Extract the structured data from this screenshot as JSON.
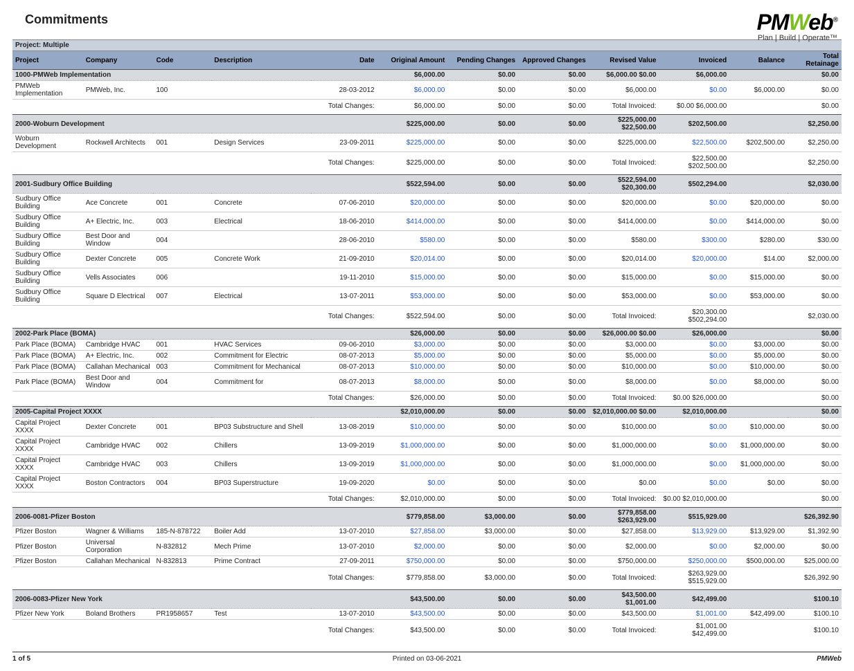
{
  "report_title": "Commitments",
  "logo_tagline": "Plan | Build | Operate™",
  "project_header": "Project:  Multiple",
  "link_color": "#2255cc",
  "header_bg": "#95a8c6",
  "group_bg": "#d7dbe0",
  "proj_head_bg": "#c9d2dc",
  "columns": [
    {
      "key": "project",
      "label": "Project",
      "align": "left"
    },
    {
      "key": "company",
      "label": "Company",
      "align": "left"
    },
    {
      "key": "code",
      "label": "Code",
      "align": "left"
    },
    {
      "key": "description",
      "label": "Description",
      "align": "left"
    },
    {
      "key": "date",
      "label": "Date",
      "align": "right"
    },
    {
      "key": "original",
      "label": "Original Amount",
      "align": "right"
    },
    {
      "key": "pending",
      "label": "Pending Changes",
      "align": "right"
    },
    {
      "key": "approved",
      "label": "Approved Changes",
      "align": "right"
    },
    {
      "key": "revised",
      "label": "Revised Value",
      "align": "right"
    },
    {
      "key": "invoiced",
      "label": "Invoiced",
      "align": "right"
    },
    {
      "key": "balance",
      "label": "Balance",
      "align": "right"
    },
    {
      "key": "retainage",
      "label": "Total Retainage",
      "align": "right"
    }
  ],
  "labels": {
    "total_changes": "Total Changes:",
    "total_invoiced": "Total Invoiced:"
  },
  "groups": [
    {
      "name": "1000-PMWeb Implementation",
      "header_totals": {
        "original": "$6,000.00",
        "pending": "$0.00",
        "approved": "$0.00",
        "revised": "$6,000.00",
        "inv2": "$0.00",
        "invoiced": "$6,000.00",
        "balance": "",
        "retainage": "$0.00"
      },
      "rows": [
        {
          "project": "PMWeb Implementation",
          "company": "PMWeb, Inc.",
          "code": "100",
          "description": "",
          "date": "28-03-2012",
          "original": "$6,000.00",
          "pending": "$0.00",
          "approved": "$0.00",
          "revised": "$6,000.00",
          "invoiced": "$0.00",
          "balance": "$6,000.00",
          "retainage": "$0.00"
        }
      ],
      "totals": {
        "changes_original": "$6,000.00",
        "changes_pending": "$0.00",
        "changes_approved": "$0.00",
        "invoiced": "$0.00",
        "inv_balance": "$6,000.00",
        "retainage": "$0.00"
      }
    },
    {
      "name": "2000-Woburn Development",
      "header_totals": {
        "original": "$225,000.00",
        "pending": "$0.00",
        "approved": "$0.00",
        "revised": "$225,000.00",
        "inv2": "$22,500.00",
        "invoiced": "$202,500.00",
        "balance": "",
        "retainage": "$2,250.00"
      },
      "rows": [
        {
          "project": "Woburn Development",
          "company": "Rockwell Architects",
          "code": "001",
          "description": "Design Services",
          "date": "23-09-2011",
          "original": "$225,000.00",
          "pending": "$0.00",
          "approved": "$0.00",
          "revised": "$225,000.00",
          "invoiced": "$22,500.00",
          "balance": "$202,500.00",
          "retainage": "$2,250.00"
        }
      ],
      "totals": {
        "changes_original": "$225,000.00",
        "changes_pending": "$0.00",
        "changes_approved": "$0.00",
        "invoiced": "$22,500.00",
        "inv_balance": "$202,500.00",
        "retainage": "$2,250.00"
      }
    },
    {
      "name": "2001-Sudbury Office Building",
      "header_totals": {
        "original": "$522,594.00",
        "pending": "$0.00",
        "approved": "$0.00",
        "revised": "$522,594.00",
        "inv2": "$20,300.00",
        "invoiced": "$502,294.00",
        "balance": "",
        "retainage": "$2,030.00"
      },
      "rows": [
        {
          "project": "Sudbury Office Building",
          "company": "Ace Concrete",
          "code": "001",
          "description": "Concrete",
          "date": "07-06-2010",
          "original": "$20,000.00",
          "pending": "$0.00",
          "approved": "$0.00",
          "revised": "$20,000.00",
          "invoiced": "$0.00",
          "balance": "$20,000.00",
          "retainage": "$0.00"
        },
        {
          "project": "Sudbury Office Building",
          "company": "A+ Electric, Inc.",
          "code": "003",
          "description": "Electrical",
          "date": "18-06-2010",
          "original": "$414,000.00",
          "pending": "$0.00",
          "approved": "$0.00",
          "revised": "$414,000.00",
          "invoiced": "$0.00",
          "balance": "$414,000.00",
          "retainage": "$0.00"
        },
        {
          "project": "Sudbury Office Building",
          "company": "Best Door and Window",
          "code": "004",
          "description": "",
          "date": "28-06-2010",
          "original": "$580.00",
          "pending": "$0.00",
          "approved": "$0.00",
          "revised": "$580.00",
          "invoiced": "$300.00",
          "balance": "$280.00",
          "retainage": "$30.00"
        },
        {
          "project": "Sudbury Office Building",
          "company": "Dexter Concrete",
          "code": "005",
          "description": "Concrete Work",
          "date": "21-09-2010",
          "original": "$20,014.00",
          "pending": "$0.00",
          "approved": "$0.00",
          "revised": "$20,014.00",
          "invoiced": "$20,000.00",
          "balance": "$14.00",
          "retainage": "$2,000.00"
        },
        {
          "project": "Sudbury Office Building",
          "company": "Vells Associates",
          "code": "006",
          "description": "",
          "date": "19-11-2010",
          "original": "$15,000.00",
          "pending": "$0.00",
          "approved": "$0.00",
          "revised": "$15,000.00",
          "invoiced": "$0.00",
          "balance": "$15,000.00",
          "retainage": "$0.00"
        },
        {
          "project": "Sudbury Office Building",
          "company": "Square D Electrical",
          "code": "007",
          "description": "Electrical",
          "date": "13-07-2011",
          "original": "$53,000.00",
          "pending": "$0.00",
          "approved": "$0.00",
          "revised": "$53,000.00",
          "invoiced": "$0.00",
          "balance": "$53,000.00",
          "retainage": "$0.00"
        }
      ],
      "totals": {
        "changes_original": "$522,594.00",
        "changes_pending": "$0.00",
        "changes_approved": "$0.00",
        "invoiced": "$20,300.00",
        "inv_balance": "$502,294.00",
        "retainage": "$2,030.00"
      }
    },
    {
      "name": "2002-Park Place (BOMA)",
      "header_totals": {
        "original": "$26,000.00",
        "pending": "$0.00",
        "approved": "$0.00",
        "revised": "$26,000.00",
        "inv2": "$0.00",
        "invoiced": "$26,000.00",
        "balance": "",
        "retainage": "$0.00"
      },
      "rows": [
        {
          "project": "Park Place (BOMA)",
          "company": "Cambridge HVAC",
          "code": "001",
          "description": "HVAC Services",
          "date": "09-06-2010",
          "original": "$3,000.00",
          "pending": "$0.00",
          "approved": "$0.00",
          "revised": "$3,000.00",
          "invoiced": "$0.00",
          "balance": "$3,000.00",
          "retainage": "$0.00"
        },
        {
          "project": "Park Place (BOMA)",
          "company": "A+ Electric, Inc.",
          "code": "002",
          "description": "Commitment for Electric",
          "date": "08-07-2013",
          "original": "$5,000.00",
          "pending": "$0.00",
          "approved": "$0.00",
          "revised": "$5,000.00",
          "invoiced": "$0.00",
          "balance": "$5,000.00",
          "retainage": "$0.00"
        },
        {
          "project": "Park Place (BOMA)",
          "company": "Callahan Mechanical",
          "code": "003",
          "description": "Commitment for Mechanical",
          "date": "08-07-2013",
          "original": "$10,000.00",
          "pending": "$0.00",
          "approved": "$0.00",
          "revised": "$10,000.00",
          "invoiced": "$0.00",
          "balance": "$10,000.00",
          "retainage": "$0.00"
        },
        {
          "project": "Park Place (BOMA)",
          "company": "Best Door and Window",
          "code": "004",
          "description": "Commitment for",
          "date": "08-07-2013",
          "original": "$8,000.00",
          "pending": "$0.00",
          "approved": "$0.00",
          "revised": "$8,000.00",
          "invoiced": "$0.00",
          "balance": "$8,000.00",
          "retainage": "$0.00"
        }
      ],
      "totals": {
        "changes_original": "$26,000.00",
        "changes_pending": "$0.00",
        "changes_approved": "$0.00",
        "invoiced": "$0.00",
        "inv_balance": "$26,000.00",
        "retainage": "$0.00"
      }
    },
    {
      "name": "2005-Capital Project XXXX",
      "header_totals": {
        "original": "$2,010,000.00",
        "pending": "$0.00",
        "approved": "$0.00",
        "revised": "$2,010,000.00",
        "inv2": "$0.00",
        "invoiced": "$2,010,000.00",
        "balance": "",
        "retainage": "$0.00"
      },
      "rows": [
        {
          "project": "Capital Project XXXX",
          "company": "Dexter Concrete",
          "code": "001",
          "description": "BP03 Substructure and Shell",
          "date": "13-08-2019",
          "original": "$10,000.00",
          "pending": "$0.00",
          "approved": "$0.00",
          "revised": "$10,000.00",
          "invoiced": "$0.00",
          "balance": "$10,000.00",
          "retainage": "$0.00"
        },
        {
          "project": "Capital Project XXXX",
          "company": "Cambridge HVAC",
          "code": "002",
          "description": "Chillers",
          "date": "13-09-2019",
          "original": "$1,000,000.00",
          "pending": "$0.00",
          "approved": "$0.00",
          "revised": "$1,000,000.00",
          "invoiced": "$0.00",
          "balance": "$1,000,000.00",
          "retainage": "$0.00"
        },
        {
          "project": "Capital Project XXXX",
          "company": "Cambridge HVAC",
          "code": "003",
          "description": "Chillers",
          "date": "13-09-2019",
          "original": "$1,000,000.00",
          "pending": "$0.00",
          "approved": "$0.00",
          "revised": "$1,000,000.00",
          "invoiced": "$0.00",
          "balance": "$1,000,000.00",
          "retainage": "$0.00"
        },
        {
          "project": "Capital Project XXXX",
          "company": "Boston Contractors",
          "code": "004",
          "description": "BP03 Superstructure",
          "date": "19-09-2020",
          "original": "$0.00",
          "pending": "$0.00",
          "approved": "$0.00",
          "revised": "$0.00",
          "invoiced": "$0.00",
          "balance": "$0.00",
          "retainage": "$0.00"
        }
      ],
      "totals": {
        "changes_original": "$2,010,000.00",
        "changes_pending": "$0.00",
        "changes_approved": "$0.00",
        "invoiced": "$0.00",
        "inv_balance": "$2,010,000.00",
        "retainage": "$0.00"
      }
    },
    {
      "name": "2006-0081-Pfizer Boston",
      "header_totals": {
        "original": "$779,858.00",
        "pending": "$3,000.00",
        "approved": "$0.00",
        "revised": "$779,858.00",
        "inv2": "$263,929.00",
        "invoiced": "$515,929.00",
        "balance": "",
        "retainage": "$26,392.90"
      },
      "rows": [
        {
          "project": "Pfizer Boston",
          "company": "Wagner & Williams",
          "code": "185-N-878722",
          "description": "Boiler Add",
          "date": "13-07-2010",
          "original": "$27,858.00",
          "pending": "$3,000.00",
          "approved": "$0.00",
          "revised": "$27,858.00",
          "invoiced": "$13,929.00",
          "balance": "$13,929.00",
          "retainage": "$1,392.90"
        },
        {
          "project": "Pfizer Boston",
          "company": "Universal Corporation",
          "code": "N-832812",
          "description": "Mech Prime",
          "date": "13-07-2010",
          "original": "$2,000.00",
          "pending": "$0.00",
          "approved": "$0.00",
          "revised": "$2,000.00",
          "invoiced": "$0.00",
          "balance": "$2,000.00",
          "retainage": "$0.00"
        },
        {
          "project": "Pfizer Boston",
          "company": "Callahan Mechanical",
          "code": "N-832813",
          "description": "Prime Contract",
          "date": "27-09-2011",
          "original": "$750,000.00",
          "pending": "$0.00",
          "approved": "$0.00",
          "revised": "$750,000.00",
          "invoiced": "$250,000.00",
          "balance": "$500,000.00",
          "retainage": "$25,000.00"
        }
      ],
      "totals": {
        "changes_original": "$779,858.00",
        "changes_pending": "$3,000.00",
        "changes_approved": "$0.00",
        "invoiced": "$263,929.00",
        "inv_balance": "$515,929.00",
        "retainage": "$26,392.90"
      }
    },
    {
      "name": "2006-0083-Pfizer New York",
      "header_totals": {
        "original": "$43,500.00",
        "pending": "$0.00",
        "approved": "$0.00",
        "revised": "$43,500.00",
        "inv2": "$1,001.00",
        "invoiced": "$42,499.00",
        "balance": "",
        "retainage": "$100.10"
      },
      "rows": [
        {
          "project": "Pfizer New York",
          "company": "Boland Brothers",
          "code": "PR1958657",
          "description": "Test",
          "date": "13-07-2010",
          "original": "$43,500.00",
          "pending": "$0.00",
          "approved": "$0.00",
          "revised": "$43,500.00",
          "invoiced": "$1,001.00",
          "balance": "$42,499.00",
          "retainage": "$100.10"
        }
      ],
      "totals": {
        "changes_original": "$43,500.00",
        "changes_pending": "$0.00",
        "changes_approved": "$0.00",
        "invoiced": "$1,001.00",
        "inv_balance": "$42,499.00",
        "retainage": "$100.10"
      }
    }
  ],
  "footer": {
    "page": "1 of 5",
    "printed": "Printed on 03-06-2021",
    "brand": "PMWeb"
  }
}
